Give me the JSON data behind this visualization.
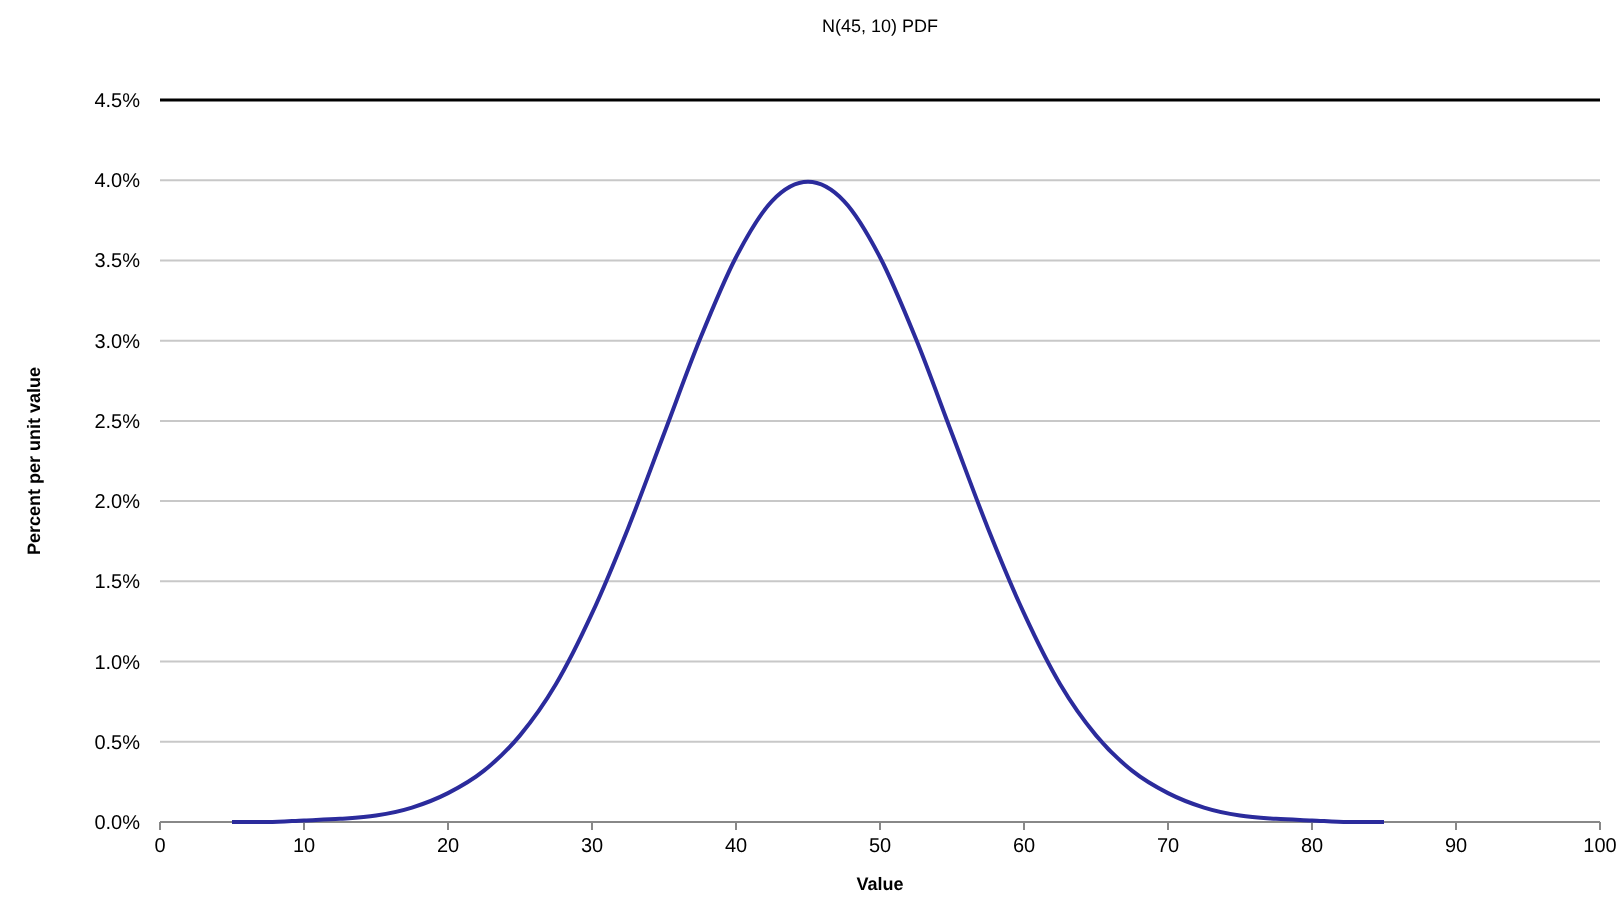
{
  "chart_data": {
    "type": "line",
    "title": "N(45, 10) PDF",
    "xlabel": "Value",
    "ylabel": "Percent per unit value",
    "x": [
      5,
      7.5,
      10,
      12.5,
      15,
      17.5,
      20,
      22.5,
      25,
      27.5,
      30,
      32.5,
      35,
      37.5,
      40,
      42.5,
      45,
      47.5,
      50,
      52.5,
      55,
      57.5,
      60,
      62.5,
      65,
      67.5,
      70,
      72.5,
      75,
      77.5,
      80,
      82.5,
      85
    ],
    "series": [
      {
        "color": "#2b2b9c",
        "values": [
          0,
          0,
          0.01,
          0.02,
          0.04,
          0.09,
          0.18,
          0.32,
          0.54,
          0.86,
          1.3,
          1.83,
          2.42,
          3.01,
          3.52,
          3.87,
          3.99,
          3.87,
          3.52,
          3.01,
          2.42,
          1.83,
          1.3,
          0.86,
          0.54,
          0.32,
          0.18,
          0.09,
          0.04,
          0.02,
          0.01,
          0,
          0
        ]
      }
    ],
    "xlim": [
      0,
      100
    ],
    "xticks": [
      0,
      10,
      20,
      30,
      40,
      50,
      60,
      70,
      80,
      90,
      100
    ],
    "ylim": [
      0,
      4.5
    ],
    "yticks": [
      {
        "value": 0,
        "label": "0.0%"
      },
      {
        "value": 0.5,
        "label": "0.5%"
      },
      {
        "value": 1,
        "label": "1.0%"
      },
      {
        "value": 1.5,
        "label": "1.5%"
      },
      {
        "value": 2,
        "label": "2.0%"
      },
      {
        "value": 2.5,
        "label": "2.5%"
      },
      {
        "value": 3,
        "label": "3.0%"
      },
      {
        "value": 3.5,
        "label": "3.5%"
      },
      {
        "value": 4,
        "label": "4.0%"
      },
      {
        "value": 4.5,
        "label": "4.5%"
      }
    ],
    "grid": "y",
    "marker": "none",
    "line_style": "solid"
  }
}
